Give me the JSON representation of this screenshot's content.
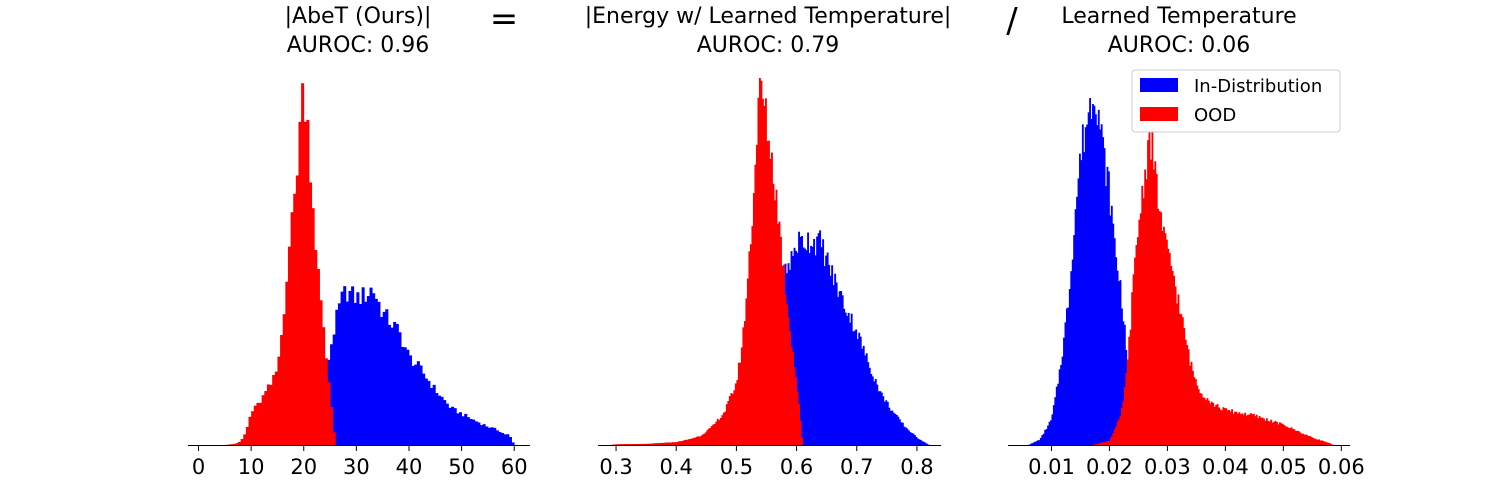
{
  "figure": {
    "operators": [
      "=",
      "/"
    ]
  },
  "legend": {
    "entries": [
      {
        "label": "In-Distribution",
        "color": "#0000ff"
      },
      {
        "label": "OOD",
        "color": "#ff0000"
      }
    ],
    "placement": "top-right of third panel"
  },
  "chart_data": [
    {
      "type": "histogram",
      "title": "|AbeT (Ours)|",
      "subtitle": "AUROC: 0.96",
      "xlim": [
        -2,
        63
      ],
      "xticks": [
        0,
        10,
        20,
        30,
        40,
        50,
        60
      ],
      "xtick_labels": [
        "0",
        "10",
        "20",
        "30",
        "40",
        "50",
        "60"
      ],
      "bin_width": 0.5,
      "y_axis_visible": false,
      "series": [
        {
          "name": "In-Distribution",
          "color": "#0000ff",
          "x": [
            17,
            20,
            22,
            23,
            24,
            25,
            26,
            27,
            28,
            30,
            32,
            33,
            35,
            38,
            40,
            42,
            45,
            48,
            50,
            52,
            55,
            57,
            58,
            59,
            60
          ],
          "y": [
            0.0,
            0.01,
            0.05,
            0.1,
            0.17,
            0.26,
            0.33,
            0.39,
            0.42,
            0.4,
            0.41,
            0.43,
            0.36,
            0.31,
            0.24,
            0.21,
            0.15,
            0.1,
            0.085,
            0.07,
            0.05,
            0.04,
            0.03,
            0.028,
            0.0
          ]
        },
        {
          "name": "OOD",
          "color": "#ff0000",
          "x": [
            5,
            7,
            8,
            9,
            10,
            11,
            12,
            13,
            14,
            15,
            16,
            17,
            18,
            19,
            19.5,
            20,
            20.5,
            21,
            22,
            23,
            24,
            25,
            26
          ],
          "y": [
            0.0,
            0.003,
            0.01,
            0.035,
            0.09,
            0.105,
            0.125,
            0.15,
            0.17,
            0.21,
            0.33,
            0.52,
            0.63,
            0.82,
            0.93,
            0.97,
            0.92,
            0.82,
            0.6,
            0.42,
            0.27,
            0.14,
            0.0
          ]
        }
      ]
    },
    {
      "type": "histogram",
      "title": "|Energy w/ Learned Temperature|",
      "subtitle": "AUROC: 0.79",
      "xlim": [
        0.27,
        0.84
      ],
      "xticks": [
        0.3,
        0.4,
        0.5,
        0.6,
        0.7,
        0.8
      ],
      "xtick_labels": [
        "0.3",
        "0.4",
        "0.5",
        "0.6",
        "0.7",
        "0.8"
      ],
      "bin_width": 0.0025,
      "y_axis_visible": false,
      "series": [
        {
          "name": "In-Distribution",
          "color": "#0000ff",
          "x": [
            0.49,
            0.5,
            0.51,
            0.52,
            0.53,
            0.54,
            0.55,
            0.57,
            0.59,
            0.6,
            0.62,
            0.64,
            0.66,
            0.68,
            0.7,
            0.72,
            0.74,
            0.76,
            0.78,
            0.8,
            0.81,
            0.82
          ],
          "y": [
            0.0,
            0.005,
            0.02,
            0.07,
            0.19,
            0.34,
            0.41,
            0.45,
            0.5,
            0.55,
            0.56,
            0.55,
            0.46,
            0.38,
            0.31,
            0.22,
            0.14,
            0.09,
            0.05,
            0.02,
            0.01,
            0.0
          ]
        },
        {
          "name": "OOD",
          "color": "#ff0000",
          "x": [
            0.29,
            0.3,
            0.35,
            0.4,
            0.42,
            0.44,
            0.46,
            0.48,
            0.5,
            0.51,
            0.52,
            0.53,
            0.535,
            0.54,
            0.545,
            0.55,
            0.56,
            0.57,
            0.58,
            0.59,
            0.6,
            0.61
          ],
          "y": [
            0.0,
            0.002,
            0.003,
            0.008,
            0.015,
            0.025,
            0.05,
            0.09,
            0.17,
            0.28,
            0.48,
            0.72,
            0.9,
            0.99,
            0.93,
            0.88,
            0.76,
            0.62,
            0.45,
            0.3,
            0.17,
            0.0
          ]
        }
      ]
    },
    {
      "type": "histogram",
      "title": "Learned Temperature",
      "subtitle": "AUROC: 0.06",
      "xlim": [
        0.0025,
        0.0615
      ],
      "xticks": [
        0.01,
        0.02,
        0.03,
        0.04,
        0.05,
        0.06
      ],
      "xtick_labels": [
        "0.01",
        "0.02",
        "0.03",
        "0.04",
        "0.05",
        "0.06"
      ],
      "bin_width": 0.00025,
      "y_axis_visible": false,
      "series": [
        {
          "name": "In-Distribution",
          "color": "#0000ff",
          "x": [
            0.006,
            0.008,
            0.01,
            0.011,
            0.012,
            0.013,
            0.014,
            0.015,
            0.016,
            0.017,
            0.0175,
            0.018,
            0.019,
            0.02,
            0.021,
            0.022,
            0.023,
            0.024,
            0.025,
            0.026
          ],
          "y": [
            0.0,
            0.015,
            0.07,
            0.16,
            0.27,
            0.41,
            0.62,
            0.79,
            0.88,
            0.95,
            0.98,
            0.92,
            0.79,
            0.69,
            0.53,
            0.42,
            0.24,
            0.12,
            0.04,
            0.0
          ]
        },
        {
          "name": "OOD",
          "color": "#ff0000",
          "x": [
            0.017,
            0.02,
            0.022,
            0.023,
            0.024,
            0.025,
            0.026,
            0.027,
            0.028,
            0.029,
            0.03,
            0.031,
            0.032,
            0.033,
            0.034,
            0.035,
            0.036,
            0.038,
            0.04,
            0.045,
            0.05,
            0.055,
            0.058,
            0.0585
          ],
          "y": [
            0.0,
            0.012,
            0.08,
            0.2,
            0.42,
            0.6,
            0.73,
            0.85,
            0.72,
            0.6,
            0.52,
            0.47,
            0.38,
            0.3,
            0.22,
            0.17,
            0.14,
            0.11,
            0.095,
            0.08,
            0.055,
            0.02,
            0.005,
            0.0
          ]
        }
      ]
    }
  ]
}
